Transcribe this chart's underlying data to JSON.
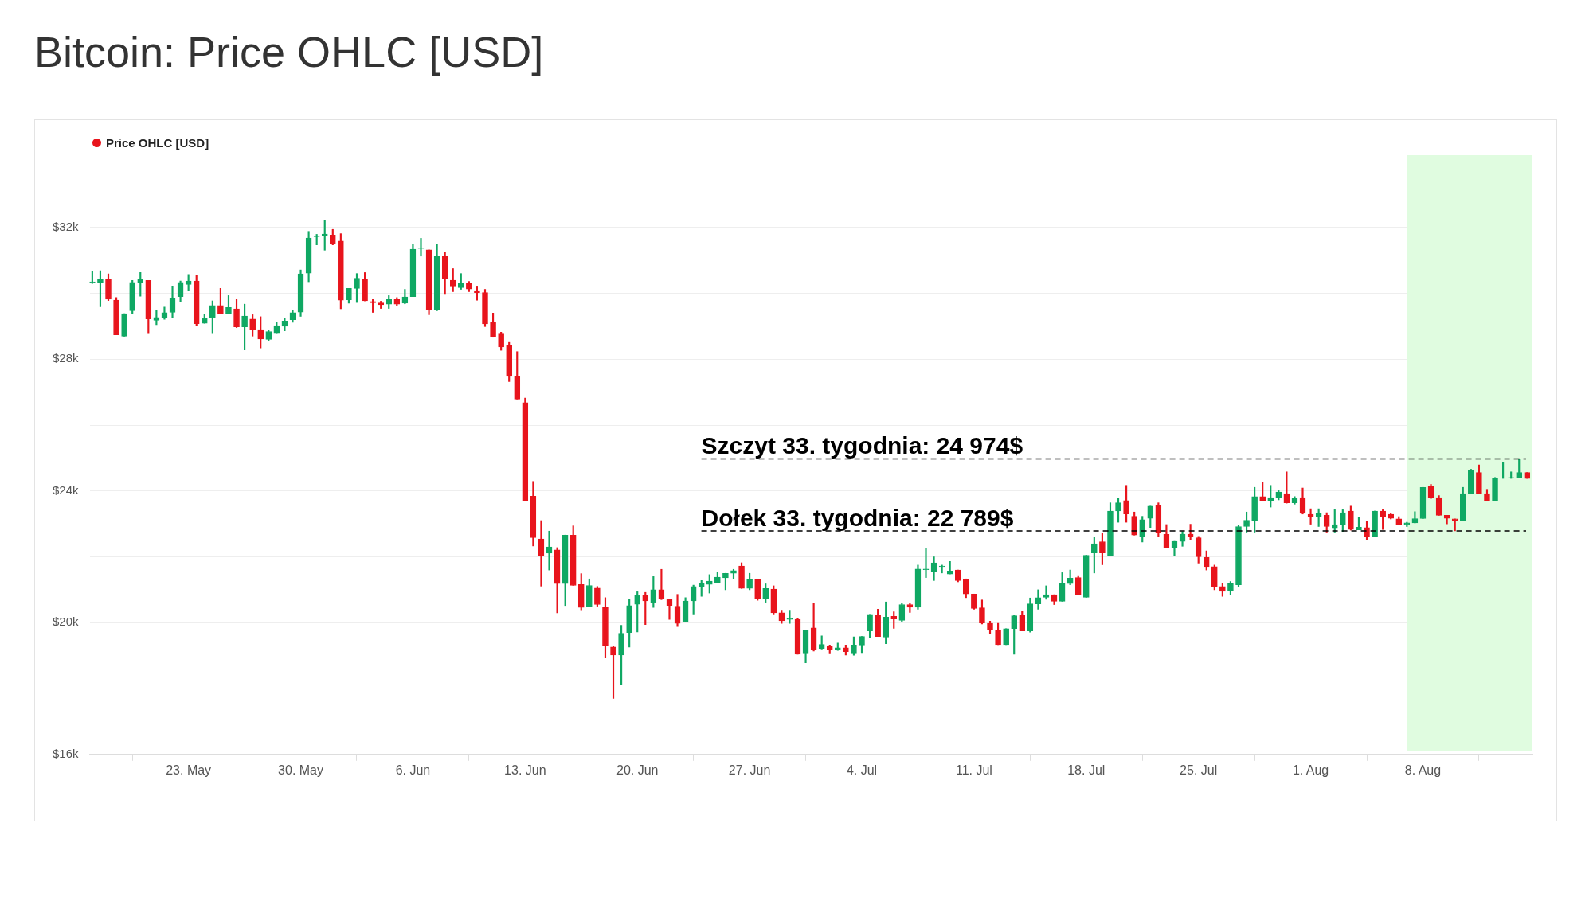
{
  "chart_data": {
    "type": "candlestick",
    "title": "Bitcoin: Price OHLC [USD]",
    "legend": "top left",
    "grid": "y",
    "ylim": [
      16000,
      34000
    ],
    "yticks": [
      {
        "value": 16000,
        "label": "$16k"
      },
      {
        "value": 18000,
        "label": null
      },
      {
        "value": 20000,
        "label": "$20k"
      },
      {
        "value": 22000,
        "label": null
      },
      {
        "value": 24000,
        "label": "$24k"
      },
      {
        "value": 26000,
        "label": null
      },
      {
        "value": 28000,
        "label": "$28k"
      },
      {
        "value": 30000,
        "label": null
      },
      {
        "value": 32000,
        "label": "$32k"
      },
      {
        "value": 34000,
        "label": null
      }
    ],
    "xlim": [
      "--05-16T20:00",
      "--08-14T20:00"
    ],
    "xticks": [
      {
        "value": "--05-23",
        "label": "23. May"
      },
      {
        "value": "--05-30",
        "label": "30. May"
      },
      {
        "value": "--06-06",
        "label": "6. Jun"
      },
      {
        "value": "--06-13",
        "label": "13. Jun"
      },
      {
        "value": "--06-20",
        "label": "20. Jun"
      },
      {
        "value": "--06-27",
        "label": "27. Jun"
      },
      {
        "value": "--07-04",
        "label": "4. Jul"
      },
      {
        "value": "--07-11",
        "label": "11. Jul"
      },
      {
        "value": "--07-18",
        "label": "18. Jul"
      },
      {
        "value": "--07-25",
        "label": "25. Jul"
      },
      {
        "value": "--08-01",
        "label": "1. Aug"
      },
      {
        "value": "--08-08",
        "label": "8. Aug"
      }
    ],
    "bands": [
      {
        "axis": "x",
        "from": "--08-07T00:00",
        "to": "--08-14T20:00",
        "color": "#e0fce0"
      }
    ],
    "ref_lines": [
      {
        "axis": "y",
        "value": 24974,
        "label": "Szczyt 33. tygodnia: 24 974$",
        "color": "#000000",
        "line_style": "dashed"
      },
      {
        "axis": "y",
        "value": 22789,
        "label": "Dołek 33. tygodnia: 22 789$",
        "color": "#000000",
        "line_style": "dashed"
      }
    ],
    "series": [
      {
        "name": "Price OHLC [USD]",
        "color": "#e8141c",
        "colors": [
          "#0fa863",
          "#0fa863",
          "#e8141c",
          "#e8141c",
          "#0fa863",
          "#0fa863",
          "#0fa863",
          "#e8141c",
          "#0fa863",
          "#0fa863",
          "#0fa863",
          "#0fa863",
          "#0fa863",
          "#e8141c",
          "#0fa863",
          "#0fa863",
          "#e8141c",
          "#0fa863",
          "#e8141c",
          "#0fa863",
          "#e8141c",
          "#e8141c",
          "#0fa863",
          "#0fa863",
          "#0fa863",
          "#0fa863",
          "#0fa863",
          "#0fa863",
          "#0fa863",
          "#0fa863",
          "#e8141c",
          "#e8141c",
          "#0fa863",
          "#0fa863",
          "#e8141c",
          "#e8141c",
          "#e8141c",
          "#0fa863",
          "#e8141c",
          "#0fa863",
          "#0fa863",
          "#0fa863",
          "#e8141c",
          "#0fa863",
          "#e8141c",
          "#e8141c",
          "#0fa863",
          "#e8141c",
          "#e8141c",
          "#e8141c",
          "#e8141c",
          "#e8141c",
          "#e8141c",
          "#e8141c",
          "#e8141c",
          "#e8141c",
          "#e8141c",
          "#0fa863",
          "#e8141c",
          "#0fa863",
          "#e8141c",
          "#e8141c",
          "#0fa863",
          "#e8141c",
          "#e8141c",
          "#e8141c",
          "#0fa863",
          "#0fa863",
          "#0fa863",
          "#e8141c",
          "#0fa863",
          "#e8141c",
          "#e8141c",
          "#e8141c",
          "#0fa863",
          "#0fa863",
          "#0fa863",
          "#0fa863",
          "#0fa863",
          "#0fa863",
          "#0fa863",
          "#e8141c",
          "#0fa863",
          "#e8141c",
          "#0fa863",
          "#e8141c",
          "#e8141c",
          "#0fa863",
          "#e8141c",
          "#0fa863",
          "#e8141c",
          "#0fa863",
          "#e8141c",
          "#0fa863",
          "#e8141c",
          "#0fa863",
          "#0fa863",
          "#0fa863",
          "#e8141c",
          "#0fa863",
          "#e8141c",
          "#0fa863",
          "#e8141c",
          "#0fa863",
          "#0fa863",
          "#0fa863",
          "#0fa863",
          "#0fa863",
          "#e8141c",
          "#e8141c",
          "#e8141c",
          "#e8141c",
          "#e8141c",
          "#e8141c",
          "#0fa863",
          "#0fa863",
          "#e8141c",
          "#0fa863",
          "#0fa863",
          "#0fa863",
          "#e8141c",
          "#0fa863",
          "#0fa863",
          "#e8141c",
          "#0fa863",
          "#0fa863",
          "#e8141c",
          "#0fa863",
          "#0fa863",
          "#e8141c",
          "#e8141c",
          "#0fa863",
          "#0fa863",
          "#e8141c",
          "#e8141c",
          "#0fa863",
          "#0fa863",
          "#e8141c",
          "#e8141c",
          "#e8141c",
          "#e8141c",
          "#e8141c",
          "#0fa863",
          "#0fa863",
          "#0fa863",
          "#0fa863",
          "#e8141c",
          "#0fa863",
          "#0fa863",
          "#e8141c",
          "#0fa863",
          "#e8141c",
          "#e8141c",
          "#0fa863",
          "#e8141c",
          "#0fa863",
          "#0fa863",
          "#e8141c",
          "#0fa863",
          "#e8141c",
          "#0fa863",
          "#e8141c",
          "#e8141c",
          "#e8141c",
          "#0fa863",
          "#0fa863",
          "#0fa863",
          "#e8141c",
          "#e8141c",
          "#e8141c",
          "#e8141c",
          "#0fa863",
          "#0fa863",
          "#e8141c",
          "#e8141c",
          "#0fa863",
          "#0fa863",
          "#0fa863",
          "#0fa863",
          "#e8141c"
        ],
        "x": [
          "--05-17T00:00",
          "--05-17T12:00",
          "--05-18T00:00",
          "--05-18T12:00",
          "--05-19T00:00",
          "--05-19T12:00",
          "--05-20T00:00",
          "--05-20T12:00",
          "--05-21T00:00",
          "--05-21T12:00",
          "--05-22T00:00",
          "--05-22T12:00",
          "--05-23T00:00",
          "--05-23T12:00",
          "--05-24T00:00",
          "--05-24T12:00",
          "--05-25T00:00",
          "--05-25T12:00",
          "--05-26T00:00",
          "--05-26T12:00",
          "--05-27T00:00",
          "--05-27T12:00",
          "--05-28T00:00",
          "--05-28T12:00",
          "--05-29T00:00",
          "--05-29T12:00",
          "--05-30T00:00",
          "--05-30T12:00",
          "--05-31T00:00",
          "--05-31T12:00",
          "--06-01T00:00",
          "--06-01T12:00",
          "--06-02T00:00",
          "--06-02T12:00",
          "--06-03T00:00",
          "--06-03T12:00",
          "--06-04T00:00",
          "--06-04T12:00",
          "--06-05T00:00",
          "--06-05T12:00",
          "--06-06T00:00",
          "--06-06T12:00",
          "--06-07T00:00",
          "--06-07T12:00",
          "--06-08T00:00",
          "--06-08T12:00",
          "--06-09T00:00",
          "--06-09T12:00",
          "--06-10T00:00",
          "--06-10T12:00",
          "--06-11T00:00",
          "--06-11T12:00",
          "--06-12T00:00",
          "--06-12T12:00",
          "--06-13T00:00",
          "--06-13T12:00",
          "--06-14T00:00",
          "--06-14T12:00",
          "--06-15T00:00",
          "--06-15T12:00",
          "--06-16T00:00",
          "--06-16T12:00",
          "--06-17T00:00",
          "--06-17T12:00",
          "--06-18T00:00",
          "--06-18T12:00",
          "--06-19T00:00",
          "--06-19T12:00",
          "--06-20T00:00",
          "--06-20T12:00",
          "--06-21T00:00",
          "--06-21T12:00",
          "--06-22T00:00",
          "--06-22T12:00",
          "--06-23T00:00",
          "--06-23T12:00",
          "--06-24T00:00",
          "--06-24T12:00",
          "--06-25T00:00",
          "--06-25T12:00",
          "--06-26T00:00",
          "--06-26T12:00",
          "--06-27T00:00",
          "--06-27T12:00",
          "--06-28T00:00",
          "--06-28T12:00",
          "--06-29T00:00",
          "--06-29T12:00",
          "--06-30T00:00",
          "--06-30T12:00",
          "--07-01T00:00",
          "--07-01T12:00",
          "--07-02T00:00",
          "--07-02T12:00",
          "--07-03T00:00",
          "--07-03T12:00",
          "--07-04T00:00",
          "--07-04T12:00",
          "--07-05T00:00",
          "--07-05T12:00",
          "--07-06T00:00",
          "--07-06T12:00",
          "--07-07T00:00",
          "--07-07T12:00",
          "--07-08T00:00",
          "--07-08T12:00",
          "--07-09T00:00",
          "--07-09T12:00",
          "--07-10T00:00",
          "--07-10T12:00",
          "--07-11T00:00",
          "--07-11T12:00",
          "--07-12T00:00",
          "--07-12T12:00",
          "--07-13T00:00",
          "--07-13T12:00",
          "--07-14T00:00",
          "--07-14T12:00",
          "--07-15T00:00",
          "--07-15T12:00",
          "--07-16T00:00",
          "--07-16T12:00",
          "--07-17T00:00",
          "--07-17T12:00",
          "--07-18T00:00",
          "--07-18T12:00",
          "--07-19T00:00",
          "--07-19T12:00",
          "--07-20T00:00",
          "--07-20T12:00",
          "--07-21T00:00",
          "--07-21T12:00",
          "--07-22T00:00",
          "--07-22T12:00",
          "--07-23T00:00",
          "--07-23T12:00",
          "--07-24T00:00",
          "--07-24T12:00",
          "--07-25T00:00",
          "--07-25T12:00",
          "--07-26T00:00",
          "--07-26T12:00",
          "--07-27T00:00",
          "--07-27T12:00",
          "--07-28T00:00",
          "--07-28T12:00",
          "--07-29T00:00",
          "--07-29T12:00",
          "--07-30T00:00",
          "--07-30T12:00",
          "--07-31T00:00",
          "--07-31T12:00",
          "--08-01T00:00",
          "--08-01T12:00",
          "--08-02T00:00",
          "--08-02T12:00",
          "--08-03T00:00",
          "--08-03T12:00",
          "--08-04T00:00",
          "--08-04T12:00",
          "--08-05T00:00",
          "--08-05T12:00",
          "--08-06T00:00",
          "--08-06T12:00",
          "--08-07T00:00",
          "--08-07T12:00",
          "--08-08T00:00",
          "--08-08T12:00",
          "--08-09T00:00",
          "--08-09T12:00",
          "--08-10T00:00",
          "--08-10T12:00",
          "--08-11T00:00",
          "--08-11T12:00",
          "--08-12T00:00",
          "--08-12T12:00",
          "--08-13T00:00",
          "--08-13T12:00",
          "--08-14T00:00",
          "--08-14T12:00"
        ],
        "ohlc": [
          [
            30330,
            30670,
            30300,
            30350
          ],
          [
            30310,
            30690,
            29590,
            30430
          ],
          [
            30430,
            30590,
            29780,
            29820
          ],
          [
            29790,
            29870,
            28740,
            28740
          ],
          [
            28700,
            29380,
            28700,
            29380
          ],
          [
            29470,
            30390,
            29390,
            30330
          ],
          [
            30310,
            30630,
            29910,
            30430
          ],
          [
            30390,
            30390,
            28800,
            29220
          ],
          [
            29180,
            29470,
            29050,
            29270
          ],
          [
            29270,
            29580,
            29210,
            29410
          ],
          [
            29420,
            30220,
            29260,
            29860
          ],
          [
            29900,
            30370,
            29750,
            30330
          ],
          [
            30270,
            30570,
            30070,
            30370
          ],
          [
            30370,
            30540,
            29020,
            29080
          ],
          [
            29090,
            29370,
            29090,
            29250
          ],
          [
            29250,
            29770,
            28800,
            29630
          ],
          [
            29630,
            30150,
            29380,
            29380
          ],
          [
            29380,
            29930,
            29380,
            29570
          ],
          [
            29530,
            29830,
            28960,
            28980
          ],
          [
            28980,
            29670,
            28280,
            29310
          ],
          [
            29220,
            29350,
            28700,
            28900
          ],
          [
            28900,
            29290,
            28340,
            28610
          ],
          [
            28600,
            28890,
            28560,
            28840
          ],
          [
            28800,
            29130,
            28800,
            29020
          ],
          [
            29000,
            29250,
            28860,
            29160
          ],
          [
            29200,
            29490,
            29120,
            29410
          ],
          [
            29430,
            30710,
            29300,
            30590
          ],
          [
            30610,
            31880,
            30350,
            31680
          ],
          [
            31720,
            31790,
            31470,
            31740
          ],
          [
            31740,
            32220,
            31310,
            31800
          ],
          [
            31770,
            31940,
            31470,
            31520
          ],
          [
            31590,
            31810,
            29530,
            29790
          ],
          [
            29800,
            30150,
            29700,
            30150
          ],
          [
            30150,
            30600,
            29720,
            30460
          ],
          [
            30430,
            30630,
            29770,
            29770
          ],
          [
            29750,
            29820,
            29420,
            29710
          ],
          [
            29710,
            29760,
            29540,
            29650
          ],
          [
            29670,
            29930,
            29540,
            29820
          ],
          [
            29820,
            29870,
            29610,
            29670
          ],
          [
            29700,
            30120,
            29680,
            29890
          ],
          [
            29900,
            31490,
            29900,
            31340
          ],
          [
            31360,
            31670,
            31130,
            31380
          ],
          [
            31320,
            31320,
            29350,
            29510
          ],
          [
            29500,
            31490,
            29470,
            31130
          ],
          [
            31130,
            31240,
            29990,
            30450
          ],
          [
            30400,
            30750,
            30050,
            30220
          ],
          [
            30170,
            30600,
            30120,
            30310
          ],
          [
            30310,
            30360,
            30050,
            30130
          ],
          [
            30080,
            30220,
            29790,
            30020
          ],
          [
            30020,
            30120,
            28990,
            29070
          ],
          [
            29120,
            29400,
            28690,
            28690
          ],
          [
            28790,
            28820,
            28270,
            28370
          ],
          [
            28410,
            28510,
            27320,
            27500
          ],
          [
            27490,
            28230,
            26790,
            26790
          ],
          [
            26680,
            26820,
            23690,
            23690
          ],
          [
            23840,
            24290,
            22330,
            22580
          ],
          [
            22540,
            23100,
            21110,
            22020
          ],
          [
            22110,
            22780,
            21600,
            22300
          ],
          [
            22210,
            22280,
            20300,
            21190
          ],
          [
            21190,
            22660,
            20520,
            22660
          ],
          [
            22660,
            22940,
            21130,
            21130
          ],
          [
            21160,
            21490,
            20390,
            20460
          ],
          [
            20490,
            21330,
            20490,
            21130
          ],
          [
            21050,
            21100,
            20500,
            20550
          ],
          [
            20460,
            20760,
            18940,
            19300
          ],
          [
            19260,
            19300,
            17700,
            19020
          ],
          [
            19020,
            19920,
            18120,
            19680
          ],
          [
            19700,
            20700,
            19260,
            20520
          ],
          [
            20560,
            20940,
            19720,
            20840
          ],
          [
            20820,
            20920,
            19940,
            20660
          ],
          [
            20600,
            21400,
            20460,
            21000
          ],
          [
            21000,
            21620,
            20700,
            20720
          ],
          [
            20720,
            20720,
            20100,
            20520
          ],
          [
            20500,
            20860,
            19880,
            19980
          ],
          [
            20020,
            20760,
            20020,
            20660
          ],
          [
            20660,
            21140,
            20260,
            21100
          ],
          [
            21100,
            21280,
            20800,
            21200
          ],
          [
            21160,
            21460,
            20900,
            21260
          ],
          [
            21220,
            21540,
            21200,
            21380
          ],
          [
            21360,
            21500,
            21000,
            21500
          ],
          [
            21500,
            21620,
            21340,
            21580
          ],
          [
            21720,
            21820,
            21040,
            21040
          ],
          [
            21040,
            21500,
            21000,
            21320
          ],
          [
            21320,
            21320,
            20680,
            20740
          ],
          [
            20740,
            21180,
            20620,
            21040
          ],
          [
            21020,
            21120,
            20260,
            20300
          ],
          [
            20300,
            20380,
            19980,
            20060
          ],
          [
            20100,
            20380,
            19980,
            20120
          ],
          [
            20100,
            20120,
            19040,
            19040
          ],
          [
            19080,
            19780,
            18780,
            19780
          ],
          [
            19840,
            20600,
            19140,
            19180
          ],
          [
            19220,
            19600,
            19200,
            19340
          ],
          [
            19300,
            19320,
            19080,
            19180
          ],
          [
            19180,
            19380,
            19160,
            19240
          ],
          [
            19240,
            19320,
            19020,
            19120
          ],
          [
            19080,
            19570,
            19010,
            19320
          ],
          [
            19320,
            19580,
            19090,
            19580
          ],
          [
            19750,
            20250,
            19550,
            20250
          ],
          [
            20220,
            20410,
            19580,
            19580
          ],
          [
            19560,
            20630,
            19360,
            20170
          ],
          [
            20190,
            20330,
            19830,
            20110
          ],
          [
            20070,
            20590,
            20030,
            20550
          ],
          [
            20550,
            20590,
            20310,
            20470
          ],
          [
            20470,
            21750,
            20410,
            21630
          ],
          [
            21610,
            22250,
            21370,
            21630
          ],
          [
            21560,
            22000,
            21280,
            21820
          ],
          [
            21700,
            21750,
            21510,
            21720
          ],
          [
            21480,
            21860,
            21480,
            21570
          ],
          [
            21600,
            21600,
            21240,
            21280
          ],
          [
            21310,
            21330,
            20760,
            20870
          ],
          [
            20870,
            20870,
            20410,
            20430
          ],
          [
            20450,
            20690,
            19960,
            19990
          ],
          [
            19980,
            20050,
            19650,
            19780
          ],
          [
            19780,
            19980,
            19330,
            19330
          ],
          [
            19330,
            19820,
            19330,
            19820
          ],
          [
            19820,
            20230,
            19040,
            20210
          ],
          [
            20230,
            20350,
            19750,
            19750
          ],
          [
            19750,
            20750,
            19710,
            20570
          ],
          [
            20570,
            21000,
            20410,
            20760
          ],
          [
            20770,
            21120,
            20710,
            20850
          ],
          [
            20850,
            20850,
            20550,
            20650
          ],
          [
            20650,
            21520,
            20650,
            21190
          ],
          [
            21190,
            21600,
            21150,
            21350
          ],
          [
            21370,
            21430,
            20850,
            20850
          ],
          [
            20770,
            22050,
            20770,
            22050
          ],
          [
            22120,
            22600,
            21510,
            22400
          ],
          [
            22460,
            22730,
            21760,
            22120
          ],
          [
            22040,
            23640,
            22040,
            23390
          ],
          [
            23390,
            23770,
            23050,
            23640
          ],
          [
            23710,
            24170,
            23050,
            23300
          ],
          [
            23230,
            23360,
            22660,
            22660
          ],
          [
            22620,
            23230,
            22450,
            23130
          ],
          [
            23170,
            23540,
            22890,
            23540
          ],
          [
            23570,
            23640,
            22620,
            22720
          ],
          [
            22680,
            22980,
            22280,
            22280
          ],
          [
            22280,
            22470,
            22040,
            22470
          ],
          [
            22470,
            22770,
            22320,
            22690
          ],
          [
            22690,
            22990,
            22520,
            22620
          ],
          [
            22580,
            22620,
            21810,
            22000
          ],
          [
            21980,
            22180,
            21600,
            21700
          ],
          [
            21700,
            21750,
            21000,
            21100
          ],
          [
            21100,
            21200,
            20800,
            20950
          ],
          [
            20980,
            21250,
            20850,
            21200
          ],
          [
            21150,
            22950,
            21100,
            22920
          ],
          [
            22920,
            23360,
            22750,
            23110
          ],
          [
            23110,
            24110,
            22750,
            23830
          ],
          [
            23830,
            24260,
            23690,
            23690
          ],
          [
            23700,
            24170,
            23510,
            23800
          ],
          [
            23810,
            24010,
            23730,
            23970
          ],
          [
            23920,
            24580,
            23630,
            23640
          ],
          [
            23640,
            23830,
            23600,
            23770
          ],
          [
            23800,
            24090,
            23300,
            23320
          ],
          [
            23290,
            23460,
            22990,
            23230
          ],
          [
            23230,
            23460,
            22920,
            23320
          ],
          [
            23260,
            23340,
            22750,
            22920
          ],
          [
            22880,
            23430,
            22750,
            22980
          ],
          [
            22980,
            23430,
            22770,
            23340
          ],
          [
            23390,
            23540,
            22810,
            22830
          ],
          [
            22820,
            23200,
            22820,
            22900
          ],
          [
            22890,
            23090,
            22520,
            22620
          ],
          [
            22620,
            23390,
            22620,
            23390
          ],
          [
            23390,
            23430,
            22830,
            23230
          ],
          [
            23290,
            23320,
            23150,
            23170
          ],
          [
            23150,
            23220,
            22980,
            22980
          ],
          [
            22980,
            23050,
            22920,
            23030
          ],
          [
            23030,
            23370,
            23030,
            23160
          ],
          [
            23160,
            24110,
            23160,
            24110
          ],
          [
            24150,
            24200,
            23770,
            23800
          ],
          [
            23800,
            23860,
            23260,
            23260
          ],
          [
            23260,
            23260,
            23000,
            23170
          ],
          [
            23150,
            23150,
            22789,
            23110
          ],
          [
            23110,
            24110,
            23110,
            23920
          ],
          [
            23920,
            24660,
            23920,
            24640
          ],
          [
            24560,
            24790,
            23920,
            23920
          ],
          [
            23920,
            24050,
            23690,
            23690
          ],
          [
            23690,
            24410,
            23690,
            24380
          ],
          [
            24390,
            24860,
            24380,
            24400
          ],
          [
            24390,
            24580,
            24380,
            24410
          ],
          [
            24410,
            24974,
            24410,
            24560
          ],
          [
            24560,
            24560,
            24380,
            24380
          ]
        ]
      }
    ]
  }
}
